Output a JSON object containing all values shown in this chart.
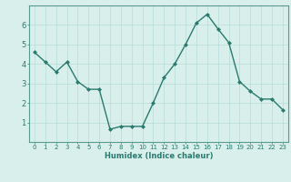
{
  "x": [
    0,
    1,
    2,
    3,
    4,
    5,
    6,
    7,
    8,
    9,
    10,
    11,
    12,
    13,
    14,
    15,
    16,
    17,
    18,
    19,
    20,
    21,
    22,
    23
  ],
  "y": [
    4.6,
    4.1,
    3.6,
    4.1,
    3.1,
    2.7,
    2.7,
    0.65,
    0.8,
    0.8,
    0.8,
    2.0,
    3.3,
    4.0,
    5.0,
    6.1,
    6.55,
    5.8,
    5.1,
    3.1,
    2.6,
    2.2,
    2.2,
    1.65
  ],
  "line_color": "#2a7a6e",
  "marker": "D",
  "markersize": 2.0,
  "linewidth": 1.0,
  "xlabel": "Humidex (Indice chaleur)",
  "xlabel_fontsize": 6.0,
  "background_color": "#d8efec",
  "grid_color": "#b8dbd8",
  "ylim": [
    0,
    7
  ],
  "xlim": [
    -0.5,
    23.5
  ],
  "yticks": [
    1,
    2,
    3,
    4,
    5,
    6
  ],
  "xticks": [
    0,
    1,
    2,
    3,
    4,
    5,
    6,
    7,
    8,
    9,
    10,
    11,
    12,
    13,
    14,
    15,
    16,
    17,
    18,
    19,
    20,
    21,
    22,
    23
  ],
  "tick_fontsize": 5.0,
  "tick_color": "#2a7a6e",
  "spine_color": "#5a9a90"
}
